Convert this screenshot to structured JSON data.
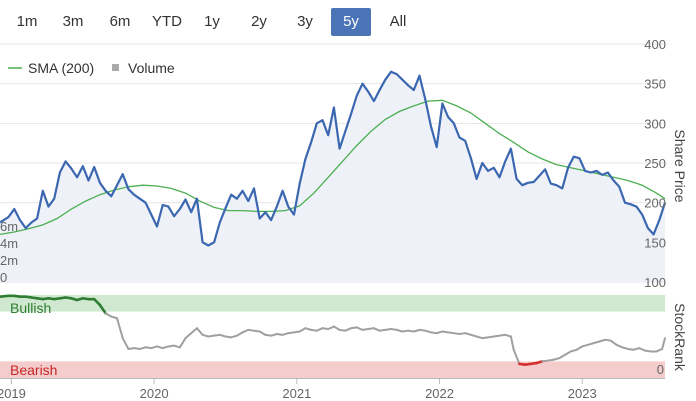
{
  "range_selector": {
    "buttons": [
      "1m",
      "3m",
      "6m",
      "YTD",
      "1y",
      "2y",
      "3y",
      "5y",
      "All"
    ],
    "active": "5y"
  },
  "legend": {
    "sma_label": "SMA (200)",
    "volume_label": "Volume"
  },
  "colors": {
    "price_line": "#3b67b0",
    "price_fill": "#eef1f8",
    "sma_line": "#4caf50",
    "volume_bar": "#c7c7c7",
    "bullish_band": "#cfe8cf",
    "bearish_band": "#f5cccc",
    "bullish_text": "#2e7d32",
    "bearish_text": "#c62828",
    "stockrank_line": "#a0a0a0",
    "stockrank_bull": "#2e7d32",
    "stockrank_bear": "#d32f2f",
    "active_button": "#4a74b5"
  },
  "chart_data": [
    {
      "type": "line",
      "title": "",
      "ylabel": "Share Price",
      "ylim": [
        100,
        400
      ],
      "y_ticks": [
        "100",
        "150",
        "200",
        "250",
        "300",
        "350",
        "400"
      ],
      "volume_ticks": [
        "0",
        "2m",
        "4m",
        "6m"
      ],
      "volume_ylim": [
        0,
        6.5
      ],
      "xlim": [
        2018.92,
        2023.58
      ],
      "x_ticks": [
        "2019",
        "2020",
        "2021",
        "2022",
        "2023"
      ],
      "x_tick_values": [
        2019,
        2020,
        2021,
        2022,
        2023
      ],
      "series": [
        {
          "name": "Share Price",
          "x": [
            2018.92,
            2018.98,
            2019.02,
            2019.06,
            2019.1,
            2019.14,
            2019.18,
            2019.22,
            2019.26,
            2019.3,
            2019.34,
            2019.38,
            2019.42,
            2019.46,
            2019.5,
            2019.54,
            2019.58,
            2019.62,
            2019.66,
            2019.7,
            2019.74,
            2019.78,
            2019.82,
            2019.86,
            2019.9,
            2019.94,
            2019.98,
            2020.02,
            2020.06,
            2020.1,
            2020.14,
            2020.18,
            2020.22,
            2020.26,
            2020.3,
            2020.34,
            2020.38,
            2020.42,
            2020.46,
            2020.5,
            2020.54,
            2020.58,
            2020.62,
            2020.66,
            2020.7,
            2020.74,
            2020.78,
            2020.82,
            2020.86,
            2020.9,
            2020.94,
            2020.98,
            2021.02,
            2021.06,
            2021.1,
            2021.14,
            2021.18,
            2021.22,
            2021.26,
            2021.3,
            2021.34,
            2021.38,
            2021.42,
            2021.46,
            2021.5,
            2021.54,
            2021.58,
            2021.62,
            2021.66,
            2021.7,
            2021.74,
            2021.78,
            2021.82,
            2021.86,
            2021.9,
            2021.94,
            2021.98,
            2022.02,
            2022.06,
            2022.1,
            2022.14,
            2022.18,
            2022.22,
            2022.26,
            2022.3,
            2022.34,
            2022.38,
            2022.42,
            2022.46,
            2022.5,
            2022.54,
            2022.58,
            2022.62,
            2022.66,
            2022.7,
            2022.74,
            2022.78,
            2022.82,
            2022.86,
            2022.9,
            2022.94,
            2022.98,
            2023.02,
            2023.06,
            2023.1,
            2023.14,
            2023.18,
            2023.22,
            2023.26,
            2023.3,
            2023.34,
            2023.38,
            2023.42,
            2023.46,
            2023.5,
            2023.54,
            2023.58
          ],
          "y": [
            175,
            182,
            192,
            178,
            168,
            175,
            180,
            215,
            195,
            205,
            238,
            252,
            243,
            232,
            246,
            228,
            245,
            225,
            215,
            208,
            222,
            236,
            217,
            210,
            205,
            200,
            185,
            170,
            197,
            195,
            183,
            192,
            204,
            188,
            205,
            150,
            146,
            150,
            175,
            193,
            210,
            205,
            215,
            202,
            218,
            180,
            188,
            178,
            195,
            215,
            195,
            185,
            224,
            255,
            276,
            300,
            304,
            285,
            320,
            268,
            290,
            312,
            335,
            350,
            340,
            328,
            342,
            355,
            365,
            362,
            355,
            348,
            342,
            360,
            330,
            296,
            270,
            325,
            308,
            300,
            282,
            278,
            256,
            230,
            250,
            240,
            244,
            232,
            252,
            268,
            230,
            222,
            225,
            226,
            234,
            242,
            224,
            222,
            218,
            244,
            258,
            256,
            240,
            238,
            240,
            235,
            238,
            228,
            220,
            200,
            198,
            195,
            185,
            168,
            160,
            178,
            200
          ]
        },
        {
          "name": "SMA (200)",
          "x": [
            2018.92,
            2019.02,
            2019.12,
            2019.22,
            2019.32,
            2019.42,
            2019.52,
            2019.62,
            2019.72,
            2019.82,
            2019.92,
            2020.02,
            2020.12,
            2020.22,
            2020.32,
            2020.42,
            2020.52,
            2020.62,
            2020.72,
            2020.82,
            2020.92,
            2021.02,
            2021.12,
            2021.22,
            2021.32,
            2021.42,
            2021.52,
            2021.62,
            2021.72,
            2021.82,
            2021.92,
            2022.02,
            2022.12,
            2022.22,
            2022.32,
            2022.42,
            2022.52,
            2022.62,
            2022.72,
            2022.82,
            2022.92,
            2023.02,
            2023.12,
            2023.22,
            2023.32,
            2023.42,
            2023.52,
            2023.58
          ],
          "y": [
            160,
            163,
            167,
            172,
            180,
            192,
            202,
            210,
            216,
            220,
            222,
            221,
            218,
            212,
            202,
            194,
            190,
            190,
            189,
            189,
            190,
            196,
            212,
            232,
            252,
            272,
            290,
            305,
            315,
            322,
            328,
            329,
            322,
            313,
            300,
            287,
            276,
            264,
            255,
            248,
            244,
            240,
            236,
            232,
            228,
            222,
            212,
            205
          ]
        }
      ],
      "volume": {
        "x": [
          2018.94,
          2018.98,
          2019.04,
          2019.1,
          2019.16,
          2019.22,
          2019.28,
          2019.34,
          2019.4,
          2019.46,
          2019.52,
          2019.56,
          2019.6,
          2019.66,
          2019.72,
          2019.78,
          2019.84,
          2019.9,
          2019.96,
          2020.02,
          2020.08,
          2020.14,
          2020.2,
          2020.24,
          2020.3,
          2020.36,
          2020.42,
          2020.48,
          2020.54,
          2020.6,
          2020.66,
          2020.72,
          2020.78,
          2020.84,
          2020.9,
          2020.96,
          2021.02,
          2021.08,
          2021.14,
          2021.2,
          2021.26,
          2021.32,
          2021.38,
          2021.44,
          2021.5,
          2021.56,
          2021.62,
          2021.68,
          2021.74,
          2021.8,
          2021.86,
          2021.92,
          2021.98,
          2022.04,
          2022.1,
          2022.16,
          2022.22,
          2022.28,
          2022.34,
          2022.4,
          2022.46,
          2022.52,
          2022.58,
          2022.64,
          2022.7,
          2022.76,
          2022.82,
          2022.88,
          2022.94,
          2023.0,
          2023.06,
          2023.12,
          2023.18,
          2023.24,
          2023.3,
          2023.36,
          2023.42,
          2023.48,
          2023.54
        ],
        "values": [
          0.8,
          0.5,
          0.9,
          0.4,
          0.6,
          1.0,
          0.5,
          0.7,
          0.6,
          1.1,
          0.5,
          5.5,
          1.8,
          0.7,
          0.6,
          0.9,
          0.5,
          0.6,
          0.4,
          0.8,
          0.6,
          1.2,
          0.9,
          1.0,
          0.7,
          0.8,
          1.5,
          0.6,
          0.5,
          0.7,
          0.6,
          0.9,
          0.5,
          0.6,
          0.5,
          0.7,
          0.6,
          0.8,
          1.1,
          0.7,
          0.6,
          0.9,
          0.8,
          0.6,
          0.5,
          0.7,
          0.6,
          1.2,
          0.8,
          0.6,
          0.5,
          0.7,
          0.9,
          0.6,
          0.5,
          0.8,
          0.6,
          0.7,
          0.5,
          0.6,
          0.8,
          0.5,
          0.6,
          0.4,
          0.5,
          0.7,
          0.6,
          0.5,
          0.4,
          0.6,
          0.5,
          0.7,
          0.4,
          0.5,
          0.6,
          0.5,
          0.7,
          0.4,
          0.5
        ]
      }
    },
    {
      "type": "line",
      "title": "",
      "ylabel": "StockRank",
      "y_ticks": [
        "0"
      ],
      "ylim": [
        0,
        100
      ],
      "bands": [
        {
          "label": "Bullish",
          "from": 80,
          "to": 100
        },
        {
          "label": "Bearish",
          "from": 0,
          "to": 20
        }
      ],
      "x": [
        2018.92,
        2018.98,
        2019.02,
        2019.06,
        2019.1,
        2019.14,
        2019.18,
        2019.22,
        2019.26,
        2019.3,
        2019.34,
        2019.38,
        2019.42,
        2019.46,
        2019.5,
        2019.54,
        2019.58,
        2019.62,
        2019.66,
        2019.7,
        2019.74,
        2019.78,
        2019.82,
        2019.86,
        2019.9,
        2019.94,
        2019.98,
        2020.02,
        2020.06,
        2020.1,
        2020.14,
        2020.18,
        2020.22,
        2020.26,
        2020.3,
        2020.34,
        2020.38,
        2020.42,
        2020.46,
        2020.5,
        2020.54,
        2020.58,
        2020.62,
        2020.66,
        2020.7,
        2020.74,
        2020.78,
        2020.82,
        2020.86,
        2020.9,
        2020.94,
        2020.98,
        2021.02,
        2021.06,
        2021.1,
        2021.14,
        2021.18,
        2021.22,
        2021.26,
        2021.3,
        2021.34,
        2021.38,
        2021.42,
        2021.46,
        2021.5,
        2021.54,
        2021.58,
        2021.62,
        2021.66,
        2021.7,
        2021.74,
        2021.78,
        2021.82,
        2021.86,
        2021.9,
        2021.94,
        2021.98,
        2022.02,
        2022.06,
        2022.1,
        2022.14,
        2022.18,
        2022.22,
        2022.26,
        2022.3,
        2022.34,
        2022.38,
        2022.42,
        2022.46,
        2022.5,
        2022.52,
        2022.56,
        2022.6,
        2022.64,
        2022.68,
        2022.72,
        2022.76,
        2022.8,
        2022.84,
        2022.88,
        2022.92,
        2022.96,
        2023.0,
        2023.04,
        2023.08,
        2023.12,
        2023.16,
        2023.2,
        2023.24,
        2023.28,
        2023.32,
        2023.36,
        2023.4,
        2023.44,
        2023.48,
        2023.52,
        2023.56,
        2023.58
      ],
      "y": [
        98,
        99,
        99,
        98,
        98,
        97,
        96,
        95,
        96,
        95,
        96,
        97,
        96,
        94,
        96,
        95,
        95,
        88,
        78,
        74,
        72,
        48,
        35,
        36,
        35,
        37,
        36,
        38,
        36,
        38,
        39,
        37,
        48,
        54,
        60,
        52,
        50,
        51,
        52,
        50,
        49,
        51,
        55,
        58,
        57,
        56,
        52,
        51,
        53,
        52,
        54,
        55,
        56,
        60,
        58,
        57,
        60,
        59,
        62,
        58,
        57,
        60,
        61,
        58,
        59,
        60,
        57,
        58,
        59,
        58,
        56,
        57,
        56,
        58,
        57,
        55,
        54,
        56,
        55,
        54,
        53,
        54,
        52,
        50,
        48,
        49,
        50,
        51,
        52,
        50,
        34,
        17,
        16,
        17,
        18,
        20,
        21,
        22,
        24,
        28,
        32,
        34,
        38,
        40,
        42,
        44,
        46,
        45,
        40,
        37,
        35,
        34,
        36,
        33,
        32,
        32,
        35,
        48
      ]
    }
  ]
}
